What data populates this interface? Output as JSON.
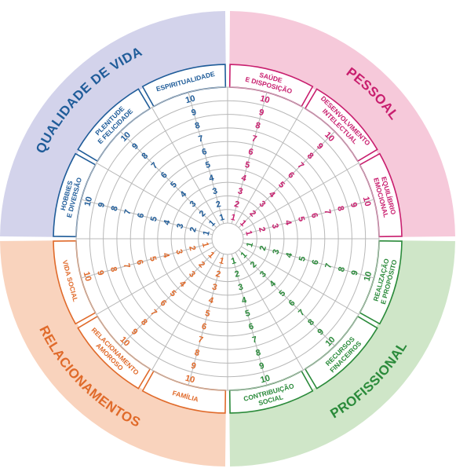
{
  "quadrants": [
    {
      "name": "QUALIDADE DE VIDA",
      "bg": "#d3d3eb",
      "color": "#1f5c99"
    },
    {
      "name": "PESSOAL",
      "bg": "#f6c9da",
      "color": "#c81e6e"
    },
    {
      "name": "PROFISSIONAL",
      "bg": "#cfe6c8",
      "color": "#2a8a3a"
    },
    {
      "name": "RELACIONAMENTOS",
      "bg": "#f9d3bd",
      "color": "#e06a2a"
    }
  ],
  "areas": [
    {
      "label": [
        "SAÚDE",
        "E DISPOSIÇÃO"
      ],
      "quadrant": 1
    },
    {
      "label": [
        "DESENVOLVIMENTO",
        "INTELECTUAL"
      ],
      "quadrant": 1
    },
    {
      "label": [
        "EQUILÍBRIO",
        "EMOCIONAL"
      ],
      "quadrant": 1
    },
    {
      "label": [
        "REALIZAÇÃO",
        "E PROPÓSITO"
      ],
      "quadrant": 2
    },
    {
      "label": [
        "RECURSOS",
        "FINACEIROS"
      ],
      "quadrant": 2
    },
    {
      "label": [
        "CONTRIBUIÇÃO",
        "SOCIAL"
      ],
      "quadrant": 2
    },
    {
      "label": [
        "FAMÍLIA"
      ],
      "quadrant": 3
    },
    {
      "label": [
        "RELACIONAMENTO",
        "AMOROSO"
      ],
      "quadrant": 3
    },
    {
      "label": [
        "VIDA SOCIAL"
      ],
      "quadrant": 3
    },
    {
      "label": [
        "HOBBIES",
        "E DIVERSÃO"
      ],
      "quadrant": 0
    },
    {
      "label": [
        "PLENITUDE",
        "E FELICIDADE"
      ],
      "quadrant": 0
    },
    {
      "label": [
        "ESPIRITUALIDADE"
      ],
      "quadrant": 0
    }
  ],
  "scale": [
    "1",
    "2",
    "3",
    "4",
    "5",
    "6",
    "7",
    "8",
    "9",
    "10"
  ],
  "grid_color": "#b8b8b8"
}
